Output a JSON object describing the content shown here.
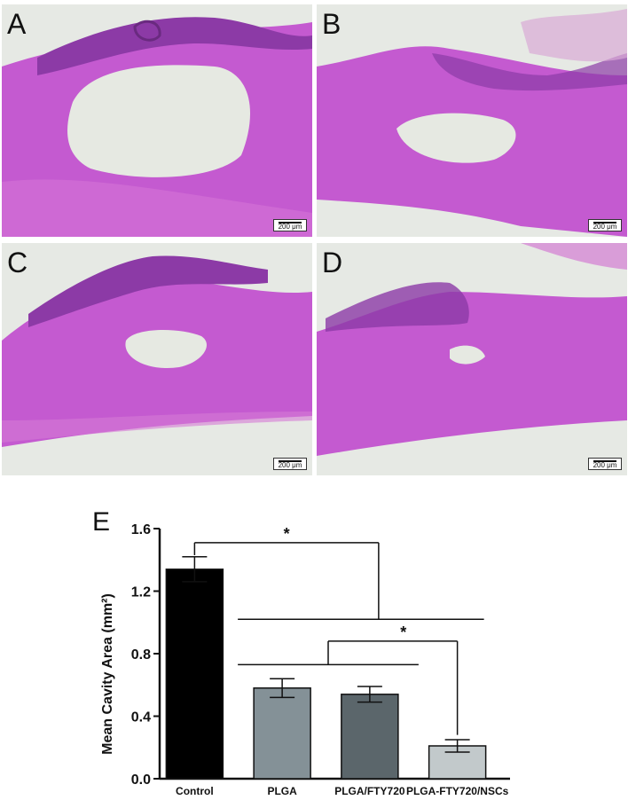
{
  "panels": [
    {
      "letter": "A",
      "scale": "200 μm"
    },
    {
      "letter": "B",
      "scale": "200 μm"
    },
    {
      "letter": "C",
      "scale": "200 μm"
    },
    {
      "letter": "D",
      "scale": "200 μm"
    }
  ],
  "colors": {
    "tissue": "#c85ad2",
    "tissue_dark": "#8e3aa8",
    "cavity": "#e8ebe4"
  },
  "chart_data": {
    "type": "bar",
    "panel_label": "E",
    "categories": [
      "Control",
      "PLGA",
      "PLGA/FTY720",
      "PLGA-FTY720/NSCs"
    ],
    "values": [
      1.34,
      0.58,
      0.54,
      0.21
    ],
    "errors": [
      0.08,
      0.06,
      0.05,
      0.04
    ],
    "bar_colors": [
      "#000000",
      "#849197",
      "#5b666b",
      "#c2c9cb"
    ],
    "ylabel": "Mean Cavity Area (mm²)",
    "ylim": [
      0,
      1.6
    ],
    "yticks": [
      "0.0",
      "0.4",
      "0.8",
      "1.2",
      "1.6"
    ],
    "significance": [
      "*",
      "*"
    ]
  }
}
